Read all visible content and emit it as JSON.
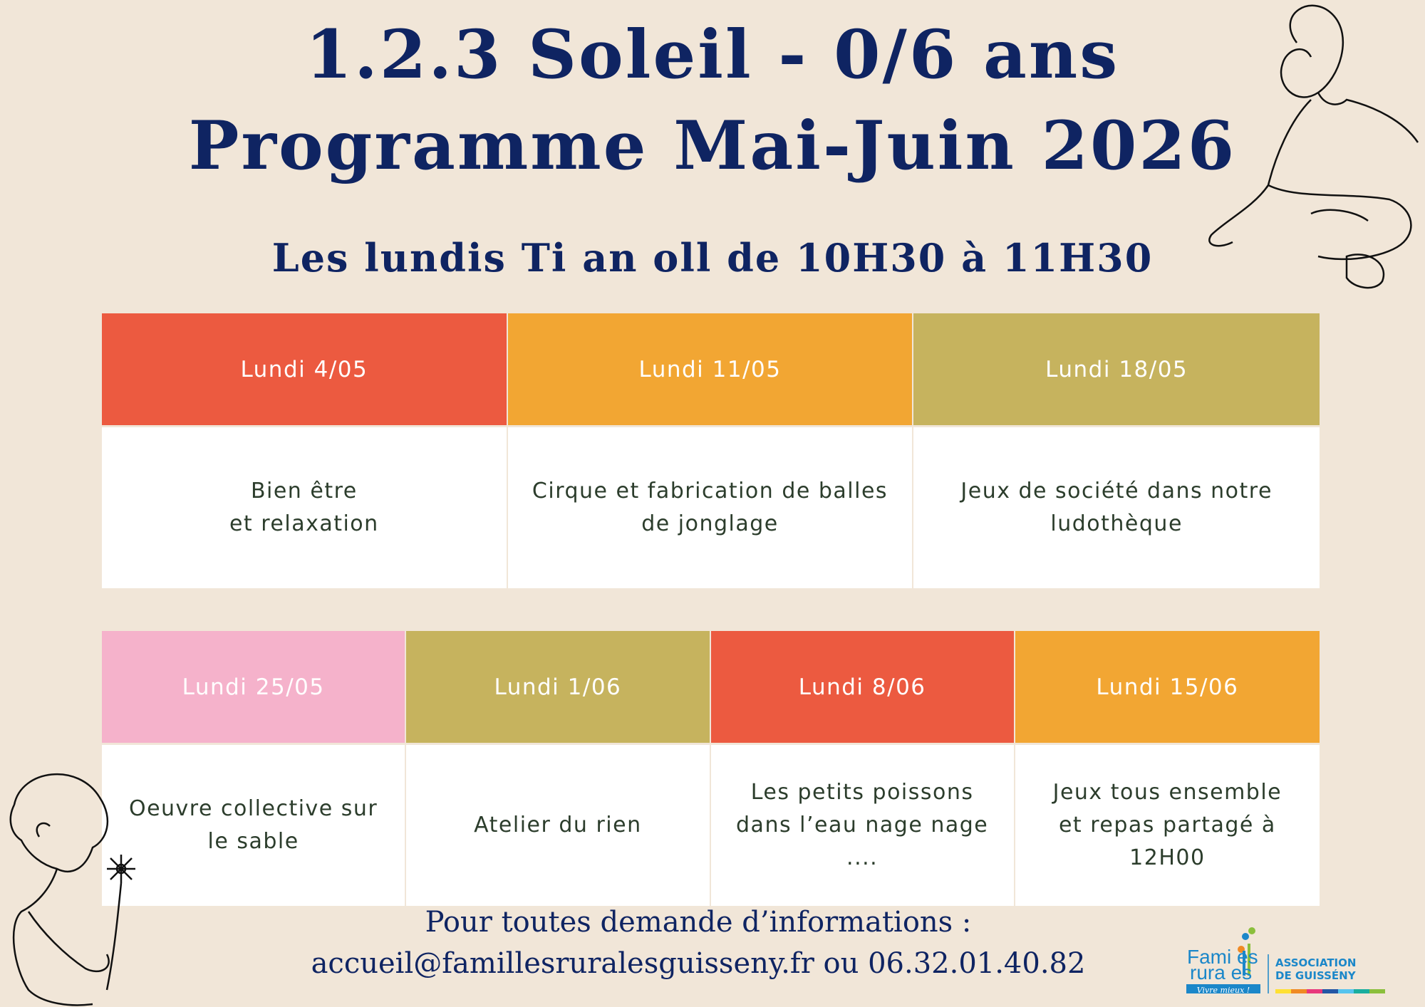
{
  "header": {
    "title_line1": "1.2.3 Soleil - 0/6 ans",
    "title_line2": "Programme Mai-Juin 2026",
    "subtitle": "Les lundis Ti an oll de 10H30 à 11H30"
  },
  "row1": [
    {
      "date": "Lundi 4/05",
      "activity": "Bien être\net relaxation",
      "color": "#ec5a40"
    },
    {
      "date": "Lundi 11/05",
      "activity": "Cirque et fabrication de balles\nde jonglage",
      "color": "#f2a633"
    },
    {
      "date": "Lundi 18/05",
      "activity": "Jeux de société dans notre\nludothèque",
      "color": "#c6b35e"
    }
  ],
  "row2": [
    {
      "date": "Lundi 25/05",
      "activity": "Oeuvre collective sur\nle sable",
      "color": "#f5b2cb"
    },
    {
      "date": "Lundi 1/06",
      "activity": "Atelier du rien",
      "color": "#c6b35e"
    },
    {
      "date": "Lundi 8/06",
      "activity": "Les petits poissons\ndans l’eau nage nage\n....",
      "color": "#ec5a40"
    },
    {
      "date": "Lundi 15/06",
      "activity": "Jeux tous ensemble\net repas partagé à\n12H00",
      "color": "#f2a633"
    }
  ],
  "footer": {
    "line1": "Pour toutes demande d’informations :",
    "line2": "accueil@famillesruralesguisseny.fr ou 06.32.01.40.82"
  },
  "logo": {
    "name_line1": "Familles",
    "name_line2": "rurales",
    "tagline": "Vivre mieux !",
    "assoc_line1": "ASSOCIATION",
    "assoc_line2": "DE GUISSÉNY",
    "color": "#1b87c9"
  }
}
